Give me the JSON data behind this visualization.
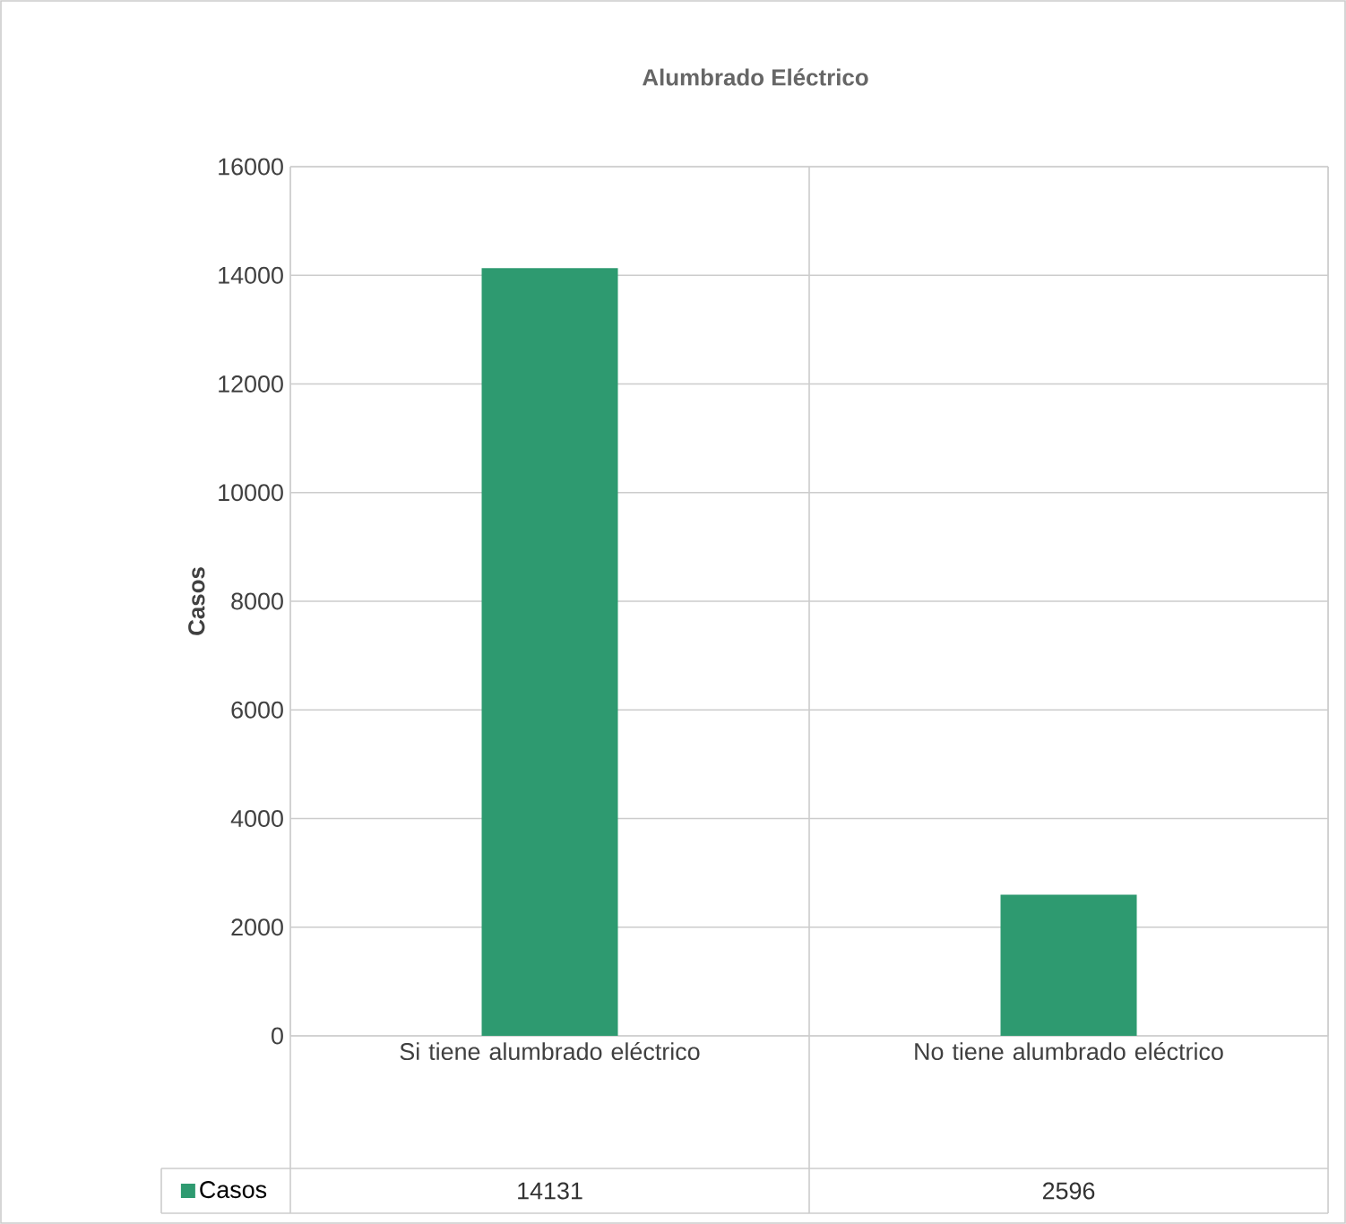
{
  "chart_data": {
    "type": "bar",
    "title": "Alumbrado Eléctrico",
    "ylabel": "Casos",
    "categories": [
      "Si tiene alumbrado eléctrico",
      "No tiene alumbrado eléctrico"
    ],
    "series": [
      {
        "name": "Casos",
        "color": "#2e9a70",
        "values": [
          14131,
          2596
        ]
      }
    ],
    "ylim": [
      0,
      16000
    ],
    "yticks": [
      0,
      2000,
      4000,
      6000,
      8000,
      10000,
      12000,
      14000,
      16000
    ],
    "grid": "y",
    "legend": "bottom",
    "data_labels": true
  }
}
